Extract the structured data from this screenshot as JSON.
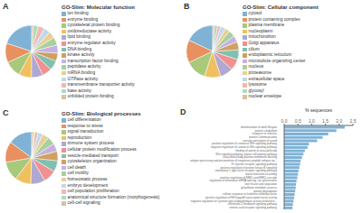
{
  "chart_data": [
    {
      "type": "pie",
      "title": "GO-Slim: Molecular function",
      "annotations": [
        "A"
      ],
      "categories": [
        "ion binding",
        "enzyme binding",
        "cytoskeletal protein binding",
        "oxidoreductase activity",
        "lipid binding",
        "enzyme regulator activity",
        "DNA binding",
        "kinase activity",
        "transcription factor binding",
        "peptidase activity",
        "mRNA binding",
        "GTPase activity",
        "transmembrane transporter activity",
        "base activity",
        "unfolded protein binding"
      ],
      "values": [
        20,
        12,
        10,
        8,
        7,
        6,
        6,
        5,
        5,
        5,
        4,
        4,
        4,
        3,
        1
      ],
      "colors": [
        "#7fb2d5",
        "#e89060",
        "#a8c87a",
        "#f0c060",
        "#b0a8d0",
        "#f09090",
        "#80c0b0",
        "#d0a060",
        "#c8b0e0",
        "#a8d0a0",
        "#e8d090",
        "#c0d8f0",
        "#f0b8b0",
        "#b0d8c0",
        "#d8c0a0"
      ]
    },
    {
      "type": "pie",
      "title": "GO-Slim: Cellular component",
      "annotations": [
        "B"
      ],
      "categories": [
        "cytosol",
        "protein containing complex",
        "plasma membrane",
        "nucleoplasm",
        "mitochondrion",
        "Golgi apparatus",
        "cilium",
        "endoplasmic reticulum",
        "microtubule organizing center",
        "nucleus",
        "proteasome",
        "extracellular space",
        "lysosome",
        "glycosyl",
        "nuclear envelope"
      ],
      "values": [
        18,
        14,
        13,
        10,
        8,
        7,
        6,
        5,
        4,
        4,
        3,
        3,
        2,
        2,
        1
      ],
      "colors": [
        "#7fb2d5",
        "#e89060",
        "#a8c87a",
        "#f0c060",
        "#b0a8d0",
        "#f09090",
        "#80c0b0",
        "#d0a060",
        "#c8b0e0",
        "#a8d0a0",
        "#e8d090",
        "#c0d8f0",
        "#f0b8b0",
        "#b0d8c0",
        "#d8c0a0"
      ]
    },
    {
      "type": "pie",
      "title": "GO-Slim: Biological processes",
      "annotations": [
        "C"
      ],
      "categories": [
        "cell differentiation",
        "response to stress",
        "signal transduction",
        "reproduction",
        "immune system process",
        "cellular protein modification process",
        "vesicle-mediated transport",
        "cytoskeleton organization",
        "cell death",
        "cell motility",
        "homeostatic process",
        "embryo development",
        "cell population proliferation",
        "anatomical structure formation (morphogenesis)",
        "cell-cell signaling"
      ],
      "values": [
        15,
        13,
        12,
        10,
        9,
        8,
        7,
        6,
        5,
        5,
        4,
        3,
        2,
        1,
        1
      ],
      "colors": [
        "#7fb2d5",
        "#e89060",
        "#a8c87a",
        "#f0c060",
        "#b0a8d0",
        "#f09090",
        "#80c0b0",
        "#d0a060",
        "#c8b0e0",
        "#a8d0a0",
        "#e8d090",
        "#c0d8f0",
        "#f0b8b0",
        "#b0d8c0",
        "#d8c0a0"
      ]
    },
    {
      "type": "bar",
      "orientation": "horizontal",
      "annotations": [
        "D"
      ],
      "xlabel": "% sequences",
      "categories": [
        "determination of adult lifespan",
        "protein catabolism",
        "response to stimulus",
        "protein Communication",
        "sensory perception of sound",
        "positive regulation of canonical Wnt signaling pathway",
        "negative regulation of canonical Wnt signaling pathway",
        "binding of sperm to zona pellucida",
        "Wnt signaling pathway, planar cell polarity pathway",
        "ciliary basal body-plasma membrane docking",
        "antigen processing and presentation of exogenous peptide antigen via...",
        "Fc epsilon receptor signaling pathway",
        "positive regulation of protein kinase B signaling",
        "stimulatory C-type lectin receptor signaling pathway",
        "lateral meristem assembly",
        "positive regulation of ERK1 and ERK2 cascade",
        "regulation of alternative mRNA splicing, via spliceosome",
        "liver fission and separation",
        "glutathione metabolic process",
        "protein degradation",
        "cellular response to leukemia inhibitory factor",
        "positive regulation of NF-kappaB transcription factor activity",
        "negative regulation of cysteine-type endopeptidase activity involved in...",
        "interleukin-1 mediated signaling pathway",
        "retinoic acid receptor signaling pathway"
      ],
      "values": [
        2.2,
        1.9,
        1.6,
        1.4,
        1.2,
        0.9,
        0.85,
        0.75,
        0.7,
        0.65,
        0.6,
        0.58,
        0.55,
        0.52,
        0.5,
        0.48,
        0.45,
        0.43,
        0.42,
        0.4,
        0.38,
        0.36,
        0.34,
        0.32,
        0.3
      ],
      "color": "#7fb2d5",
      "xlim": [
        0,
        2.5
      ],
      "xticks": [
        {
          "value": 0,
          "label": "0.0"
        },
        0.5,
        {
          "value": 1,
          "label": "1.0"
        },
        1.5,
        {
          "value": 2,
          "label": "2.0"
        },
        2.5
      ]
    }
  ]
}
